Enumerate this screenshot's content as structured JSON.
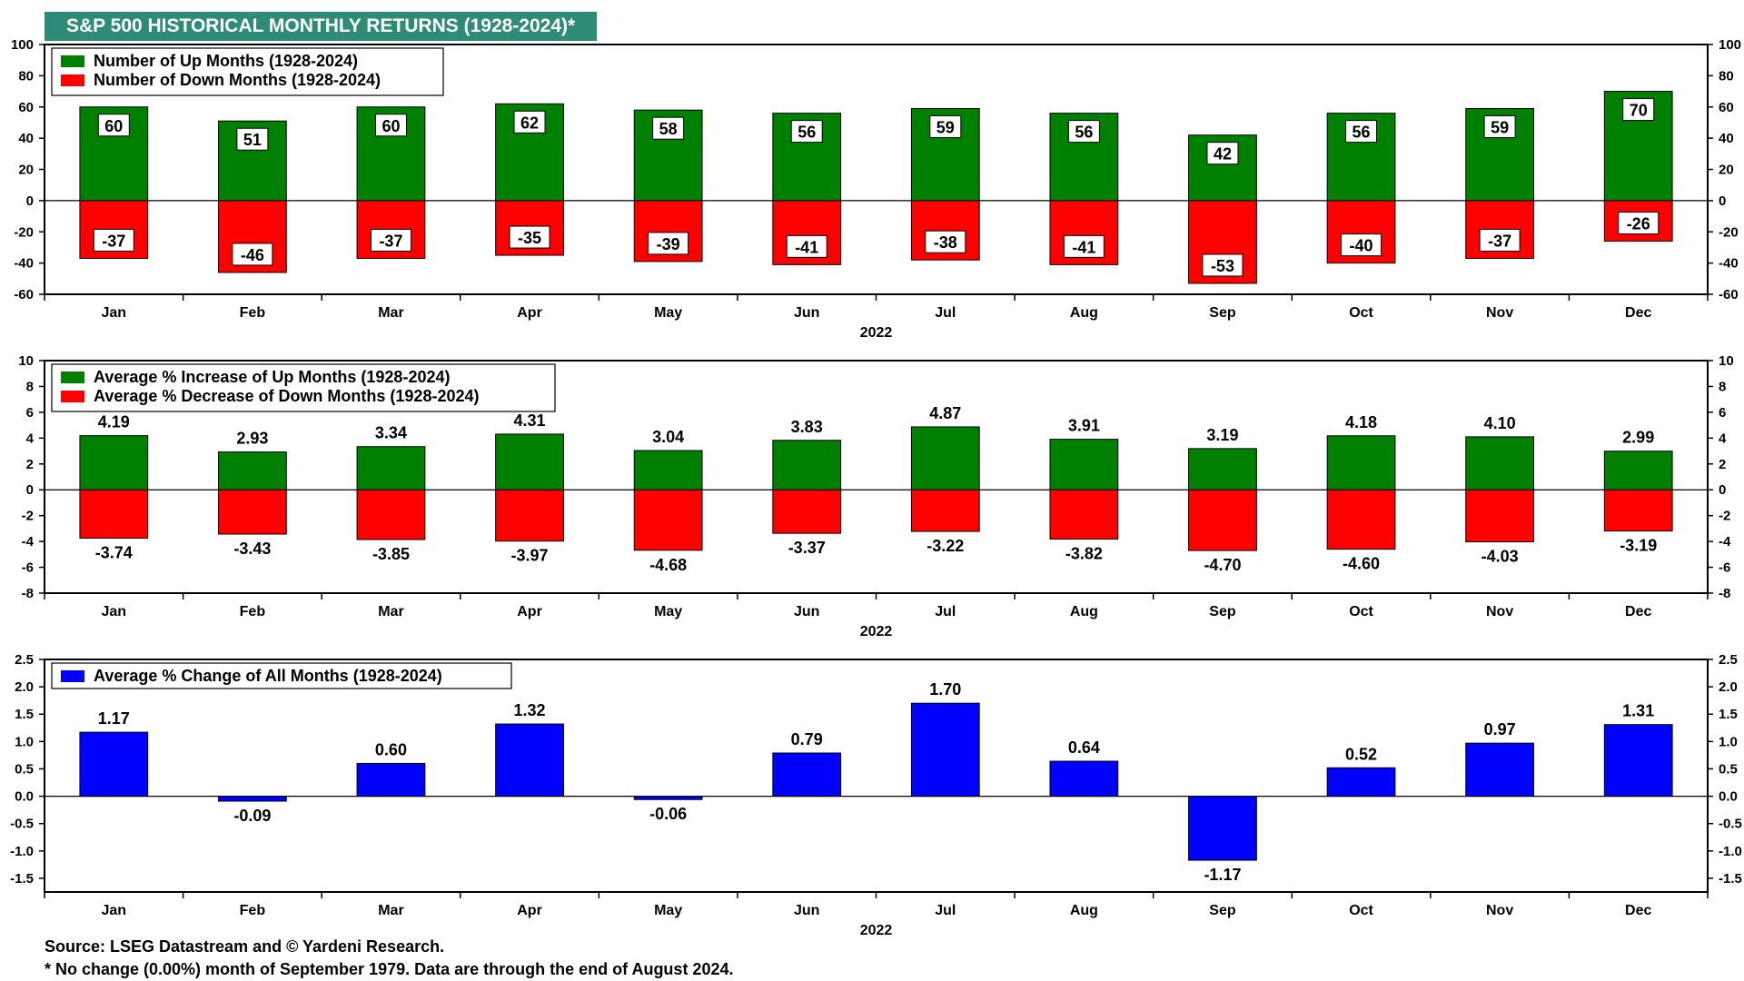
{
  "title": "S&P 500 HISTORICAL MONTHLY RETURNS (1928-2024)*",
  "source": "Source: LSEG Datastream and © Yardeni Research.",
  "footnote": "* No change (0.00%) month of September 1979. Data are through the end of August 2024.",
  "colors": {
    "banner": "#2e8b76",
    "up": "#008000",
    "down": "#ff0000",
    "all": "#0000ff"
  },
  "chart_data": [
    {
      "type": "bar",
      "categories": [
        "Jan",
        "Feb",
        "Mar",
        "Apr",
        "May",
        "Jun",
        "Jul",
        "Aug",
        "Sep",
        "Oct",
        "Nov",
        "Dec"
      ],
      "xlabel": "2022",
      "ylim": [
        -60,
        100
      ],
      "yticks": [
        "100",
        "80",
        "60",
        "40",
        "20",
        "0",
        "-20",
        "-40",
        "-60"
      ],
      "legend_position": "top-left",
      "series": [
        {
          "name": "Number of Up Months (1928-2024)",
          "color": "#008000",
          "values": [
            60,
            51,
            60,
            62,
            58,
            56,
            59,
            56,
            42,
            56,
            59,
            70
          ],
          "labels": [
            "60",
            "51",
            "60",
            "62",
            "58",
            "56",
            "59",
            "56",
            "42",
            "56",
            "59",
            "70"
          ]
        },
        {
          "name": "Number of Down Months (1928-2024)",
          "color": "#ff0000",
          "values": [
            -37,
            -46,
            -37,
            -35,
            -39,
            -41,
            -38,
            -41,
            -53,
            -40,
            -37,
            -26
          ],
          "labels": [
            "-37",
            "-46",
            "-37",
            "-35",
            "-39",
            "-41",
            "-38",
            "-41",
            "-53",
            "-40",
            "-37",
            "-26"
          ]
        }
      ]
    },
    {
      "type": "bar",
      "categories": [
        "Jan",
        "Feb",
        "Mar",
        "Apr",
        "May",
        "Jun",
        "Jul",
        "Aug",
        "Sep",
        "Oct",
        "Nov",
        "Dec"
      ],
      "xlabel": "2022",
      "ylim": [
        -8,
        10
      ],
      "yticks": [
        "10",
        "8",
        "6",
        "4",
        "2",
        "0",
        "-2",
        "-4",
        "-6",
        "-8"
      ],
      "legend_position": "top-left",
      "series": [
        {
          "name": "Average % Increase of Up Months (1928-2024)",
          "color": "#008000",
          "values": [
            4.19,
            2.93,
            3.34,
            4.31,
            3.04,
            3.83,
            4.87,
            3.91,
            3.19,
            4.18,
            4.1,
            2.99
          ],
          "labels": [
            "4.19",
            "2.93",
            "3.34",
            "4.31",
            "3.04",
            "3.83",
            "4.87",
            "3.91",
            "3.19",
            "4.18",
            "4.10",
            "2.99"
          ]
        },
        {
          "name": "Average % Decrease of Down Months (1928-2024)",
          "color": "#ff0000",
          "values": [
            -3.74,
            -3.43,
            -3.85,
            -3.97,
            -4.68,
            -3.37,
            -3.22,
            -3.82,
            -4.7,
            -4.6,
            -4.03,
            -3.19
          ],
          "labels": [
            "-3.74",
            "-3.43",
            "-3.85",
            "-3.97",
            "-4.68",
            "-3.37",
            "-3.22",
            "-3.82",
            "-4.70",
            "-4.60",
            "-4.03",
            "-3.19"
          ]
        }
      ]
    },
    {
      "type": "bar",
      "categories": [
        "Jan",
        "Feb",
        "Mar",
        "Apr",
        "May",
        "Jun",
        "Jul",
        "Aug",
        "Sep",
        "Oct",
        "Nov",
        "Dec"
      ],
      "xlabel": "2022",
      "ylim": [
        -1.75,
        2.5
      ],
      "yticks": [
        "2.5",
        "2.0",
        "1.5",
        "1.0",
        "0.5",
        "0.0",
        "-0.5",
        "-1.0",
        "-1.5"
      ],
      "legend_position": "top-left",
      "series": [
        {
          "name": "Average % Change of All Months (1928-2024)",
          "color": "#0000ff",
          "values": [
            1.17,
            -0.09,
            0.6,
            1.32,
            -0.06,
            0.79,
            1.7,
            0.64,
            -1.17,
            0.52,
            0.97,
            1.31
          ],
          "labels": [
            "1.17",
            "-0.09",
            "0.60",
            "1.32",
            "-0.06",
            "0.79",
            "1.70",
            "0.64",
            "-1.17",
            "0.52",
            "0.97",
            "1.31"
          ]
        }
      ]
    }
  ]
}
